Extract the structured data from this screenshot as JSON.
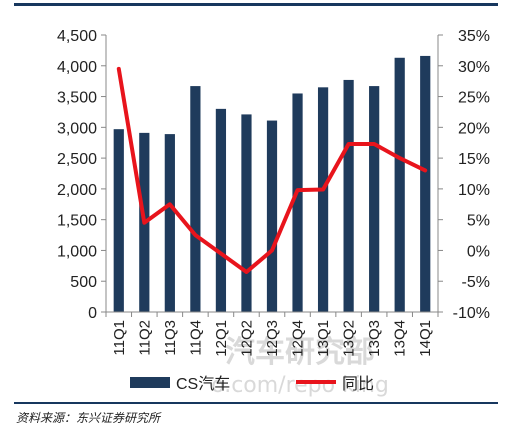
{
  "chart_data": {
    "type": "bar",
    "categories": [
      "11Q1",
      "11Q2",
      "11Q3",
      "11Q4",
      "12Q1",
      "12Q2",
      "12Q3",
      "12Q4",
      "13Q1",
      "13Q2",
      "13Q3",
      "13Q4",
      "14Q1"
    ],
    "series": [
      {
        "name": "CS汽车",
        "type": "bar",
        "axis": "left",
        "color": "#1f3b5c",
        "values": [
          2970,
          2910,
          2890,
          3670,
          3300,
          3210,
          3110,
          3550,
          3650,
          3770,
          3670,
          4130,
          4160
        ]
      },
      {
        "name": "同比",
        "type": "line",
        "axis": "right",
        "color": "#e8141c",
        "values": [
          29.5,
          4.5,
          7.5,
          2.5,
          -0.5,
          -3.5,
          0.0,
          9.8,
          9.9,
          17.3,
          17.3,
          15.0,
          13.0
        ]
      }
    ],
    "y_left": {
      "ylim": [
        0,
        4500
      ],
      "ticks": [
        "0",
        "500",
        "1,000",
        "1,500",
        "2,000",
        "2,500",
        "3,000",
        "3,500",
        "4,000",
        "4,500"
      ]
    },
    "y_right": {
      "ylim": [
        -10,
        35
      ],
      "ticks": [
        "-10%",
        "-5%",
        "0%",
        "5%",
        "10%",
        "15%",
        "20%",
        "25%",
        "30%",
        "35%"
      ]
    },
    "legend": "bottom",
    "grid": false
  },
  "source": "资料来源：东兴证券研究所",
  "watermark": {
    "text": "汽车研究部",
    "sub": "o.com/repo king"
  }
}
